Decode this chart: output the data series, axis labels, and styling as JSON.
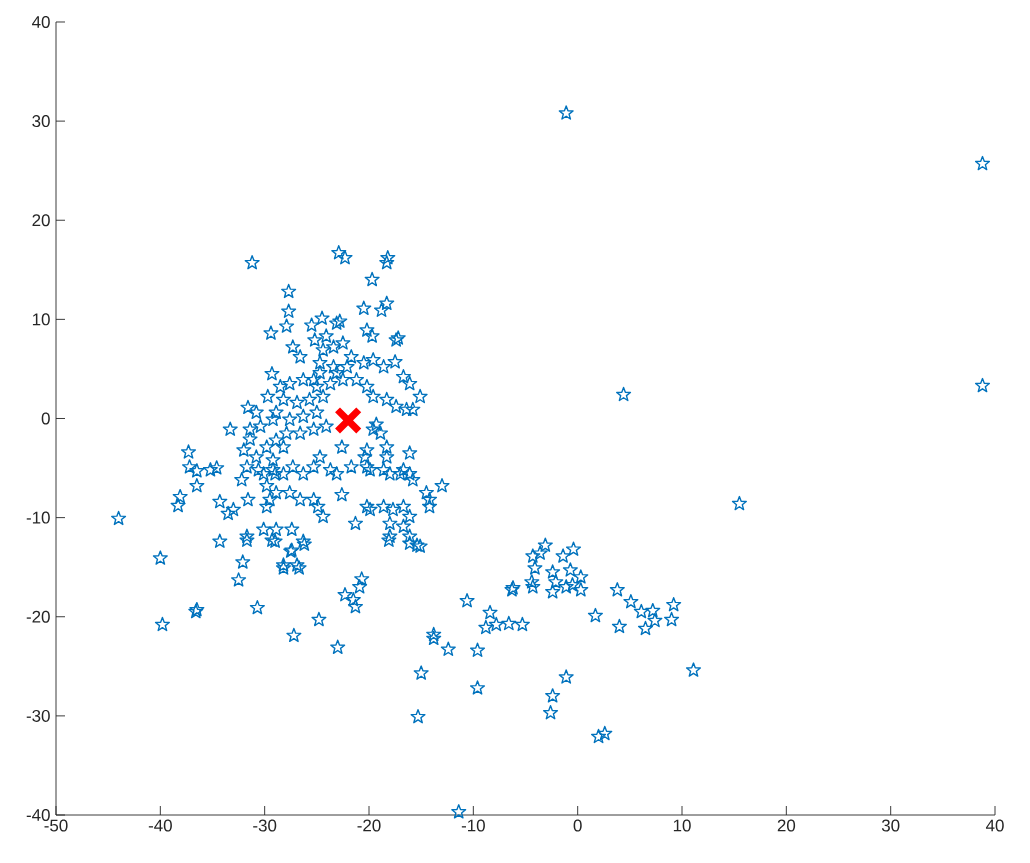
{
  "chart_data": {
    "type": "scatter",
    "xlim": [
      -50,
      40
    ],
    "ylim": [
      -40,
      40
    ],
    "xticks": [
      -50,
      -40,
      -30,
      -20,
      -10,
      0,
      10,
      20,
      30,
      40
    ],
    "yticks": [
      -40,
      -30,
      -20,
      -10,
      0,
      10,
      20,
      30,
      40
    ],
    "series": [
      {
        "color": "#0072bd",
        "marker": "star",
        "x": [
          -1.1,
          38.8,
          38.8,
          4.4,
          15.5,
          11.1,
          -11.4,
          -44.0,
          -40.0,
          -39.8,
          -36.6,
          -36.5,
          -31.2,
          -22.9,
          -22.3,
          -18.2,
          -18.3,
          -19.7,
          -27.7,
          -27.7,
          -27.9,
          -29.4,
          -29.3,
          -31.6,
          -3.1,
          -4.3,
          -3.6,
          -1.4,
          -0.4,
          -4.1,
          -4.4,
          -4.3,
          -2.4,
          -2.4,
          -1.1,
          -0.5,
          0.3,
          0.3,
          -0.7,
          -2.1,
          -6.3,
          -6.2,
          -10.6,
          -8.4,
          -8.8,
          -7.8,
          -6.6,
          -5.3,
          -13.8,
          -13.8,
          -12.4,
          -9.6,
          -15.0,
          -9.6,
          -15.3,
          -1.1,
          -2.4,
          -2.6,
          2.0,
          2.6,
          1.7,
          3.8,
          4.0,
          5.1,
          6.1,
          7.2,
          7.4,
          6.5,
          9.0,
          9.2,
          -32.5,
          -32.1,
          -30.7,
          -34.3,
          -28.2,
          -26.7,
          -27.5,
          -26.2,
          -27.2,
          -24.8,
          -23.0,
          -22.3,
          -21.3,
          -20.7,
          -20.9,
          -21.5,
          -18.1,
          -16.1,
          -15.1,
          -29.0,
          -31.7,
          -33.3,
          -37.3,
          -37.2,
          -36.5,
          -35.2,
          -34.6,
          -36.5,
          -38.1,
          -38.3,
          -34.3,
          -33.5,
          -33.0,
          -31.7,
          -31.6,
          -32.2,
          -32.0,
          -30.1,
          -29.8,
          -29.5,
          -29.7,
          -29.2,
          -29.8,
          -30.1,
          -29.0,
          -31.4,
          -31.4,
          -30.8,
          -30.4,
          -30.8,
          -30.6,
          -29.2,
          -31.7,
          -29.8,
          -28.9,
          -20.5,
          -18.3,
          -18.8,
          -20.2,
          -19.7,
          -17.2,
          -17.4,
          -24.5,
          -25.5,
          -23.1,
          -22.8,
          -27.3,
          -26.6,
          -25.2,
          -24.4,
          -23.4,
          -22.5,
          -21.7,
          -24.7,
          -23.4,
          -22.1,
          -20.5,
          -19.6,
          -18.6,
          -17.5,
          -16.7,
          -16.1,
          -15.1,
          -15.8,
          -16.4,
          -17.4,
          -18.3,
          -19.6,
          -20.2,
          -21.2,
          -22.5,
          -23.7,
          -25.0,
          -26.3,
          -27.6,
          -28.5,
          -28.2,
          -26.9,
          -25.7,
          -24.4,
          -28.9,
          -27.6,
          -26.3,
          -25.0,
          -24.1,
          -25.3,
          -26.6,
          -27.9,
          -28.9,
          -28.2,
          -22.6,
          -20.2,
          -20.4,
          -18.3,
          -18.3,
          -16.1,
          -19.6,
          -19.3,
          -18.9,
          -16.7,
          -17.0,
          -16.1,
          -15.8,
          -18.0,
          -18.6,
          -20.2,
          -19.9,
          -21.7,
          -22.6,
          -23.1,
          -23.7,
          -24.7,
          -25.3,
          -26.3,
          -27.3,
          -28.2,
          -29.2,
          -27.6,
          -26.6,
          -25.3,
          -24.4,
          -24.9,
          -21.3,
          -20.2,
          -19.9,
          -18.6,
          -17.7,
          -16.7,
          -16.1,
          -18.0,
          -16.7,
          -18.0,
          -16.1,
          -15.4,
          -14.2,
          -14.5,
          -13.0,
          -14.2,
          -27.4,
          -28.9,
          -26.3,
          -27.4,
          -28.2,
          -26.9,
          -29.3,
          -24.7,
          -23.1,
          -25.3,
          -24.1
        ],
        "values": [
          30.8,
          25.7,
          3.3,
          2.4,
          -8.6,
          -25.4,
          -39.7,
          -10.1,
          -14.1,
          -20.8,
          -19.5,
          -19.3,
          15.7,
          16.7,
          16.2,
          16.2,
          15.7,
          14.0,
          12.8,
          10.8,
          9.3,
          8.6,
          4.5,
          1.1,
          -12.8,
          -13.9,
          -13.6,
          -13.9,
          -13.2,
          -15.1,
          -16.5,
          -17.0,
          -15.5,
          -17.5,
          -17.0,
          -16.8,
          -17.3,
          -16.0,
          -15.3,
          -16.5,
          -17.3,
          -17.1,
          -18.4,
          -19.6,
          -21.1,
          -20.8,
          -20.7,
          -20.8,
          -22.2,
          -21.8,
          -23.3,
          -23.4,
          -25.7,
          -27.2,
          -30.1,
          -26.1,
          -28.0,
          -29.7,
          -32.1,
          -31.8,
          -19.9,
          -17.3,
          -21.0,
          -18.5,
          -19.5,
          -19.4,
          -20.4,
          -21.2,
          -20.3,
          -18.8,
          -16.3,
          -14.5,
          -19.1,
          -12.4,
          -15.1,
          -15.1,
          -13.4,
          -12.7,
          -21.9,
          -20.3,
          -23.1,
          -17.8,
          -19.0,
          -16.2,
          -17.0,
          -18.3,
          -12.3,
          -12.6,
          -12.9,
          -12.4,
          -12.3,
          -1.1,
          -3.4,
          -4.9,
          -5.3,
          -5.2,
          -5.0,
          -6.8,
          -7.9,
          -8.8,
          -8.4,
          -9.6,
          -9.2,
          -11.9,
          -8.2,
          -6.2,
          -3.2,
          -11.2,
          -8.9,
          -8.2,
          2.2,
          -0.1,
          -2.9,
          -5.6,
          -5.6,
          -1.1,
          -2.1,
          0.6,
          -0.8,
          -3.9,
          -5.2,
          -4.2,
          -4.9,
          -6.8,
          -7.5,
          11.1,
          11.6,
          10.9,
          8.9,
          8.3,
          8.1,
          7.9,
          10.1,
          9.4,
          9.6,
          9.8,
          7.2,
          6.2,
          7.9,
          6.9,
          7.2,
          7.6,
          6.2,
          5.6,
          5.2,
          5.2,
          5.6,
          5.9,
          5.2,
          5.7,
          4.2,
          3.5,
          2.2,
          0.9,
          0.9,
          1.2,
          1.9,
          2.2,
          3.2,
          3.9,
          3.9,
          3.5,
          3.2,
          3.9,
          3.5,
          3.2,
          1.9,
          1.6,
          1.9,
          2.2,
          0.6,
          -0.1,
          0.2,
          0.6,
          -0.8,
          -1.1,
          -1.5,
          -1.5,
          -2.2,
          -2.9,
          -2.9,
          -3.2,
          -3.9,
          -2.9,
          -3.9,
          -3.5,
          -1.1,
          -0.6,
          -1.5,
          -5.2,
          -5.6,
          -5.6,
          -6.2,
          -5.6,
          -5.2,
          -4.9,
          -5.2,
          -4.9,
          -7.7,
          -5.6,
          -5.2,
          -3.9,
          -4.9,
          -5.6,
          -4.9,
          -5.6,
          -5.2,
          -7.5,
          -8.2,
          -8.2,
          -9.9,
          -8.9,
          -10.6,
          -8.9,
          -9.2,
          -8.9,
          -9.2,
          -8.9,
          -9.9,
          -10.6,
          -10.9,
          -11.9,
          -11.9,
          -12.8,
          -8.2,
          -7.5,
          -6.8,
          -8.9,
          -11.2,
          -11.2,
          -12.4,
          -13.3,
          -14.8,
          -14.8,
          -12.3,
          4.6,
          4.6,
          3.9,
          8.3
        ]
      },
      {
        "color": "#ff0000",
        "marker": "cross",
        "x": [
          -22.0
        ],
        "values": [
          -0.2
        ]
      }
    ]
  }
}
